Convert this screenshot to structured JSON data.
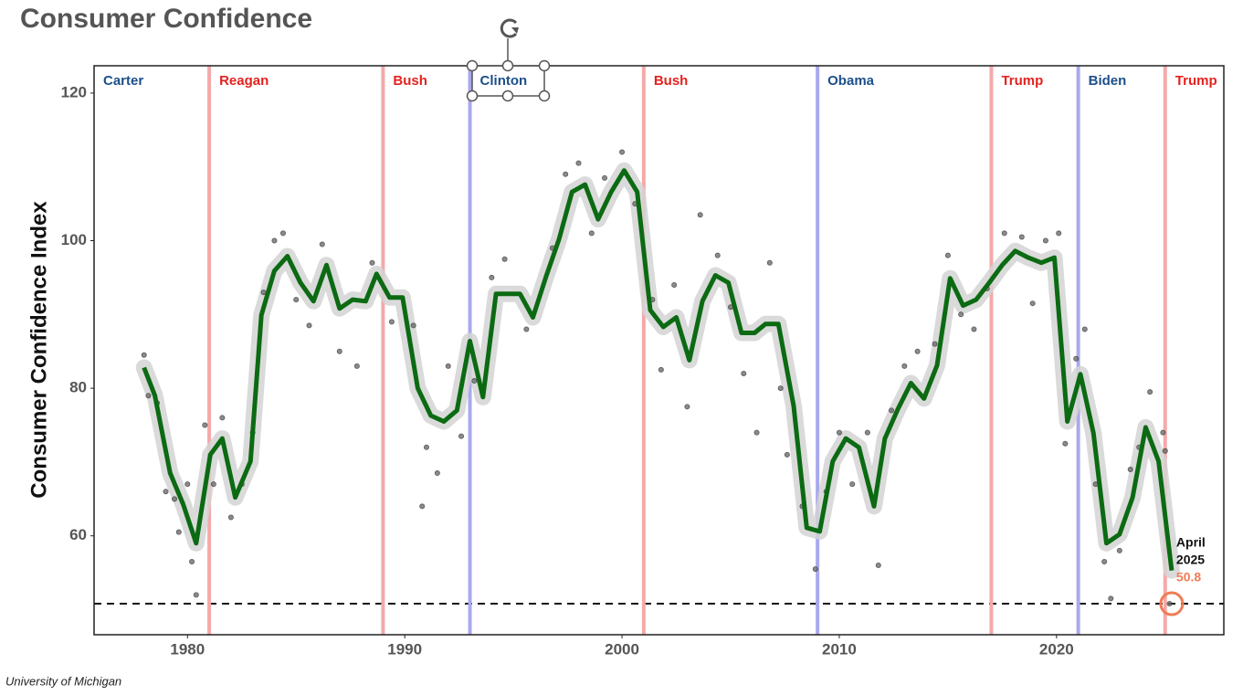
{
  "chart_data": {
    "type": "line",
    "title": "Consumer Confidence",
    "y_label": "Consumer Confidence Index",
    "source": "University of Michigan",
    "xlim": [
      1975.7,
      2027.7
    ],
    "ylim": [
      46.6,
      123.7
    ],
    "xticks": [
      1980,
      1990,
      2000,
      2010,
      2020
    ],
    "yticks": [
      60,
      80,
      100,
      120
    ],
    "grid": false,
    "presidents": [
      {
        "name": "Carter",
        "color": "#1c4f8a",
        "line_color": "#a9a9ee"
      },
      {
        "name": "Reagan",
        "start": 1981,
        "color": "#e3221f",
        "line_color": "#f4a9a9"
      },
      {
        "name": "Bush",
        "start": 1989,
        "color": "#e3221f",
        "line_color": "#f4a9a9"
      },
      {
        "name": "Clinton",
        "start": 1993,
        "color": "#1c4f8a",
        "line_color": "#a9a9ee"
      },
      {
        "name": "Bush",
        "start": 2001,
        "color": "#e3221f",
        "line_color": "#f4a9a9"
      },
      {
        "name": "Obama",
        "start": 2009,
        "color": "#1c4f8a",
        "line_color": "#a9a9ee"
      },
      {
        "name": "Trump",
        "start": 2017,
        "color": "#e3221f",
        "line_color": "#f4a9a9"
      },
      {
        "name": "Biden",
        "start": 2021,
        "color": "#1c4f8a",
        "line_color": "#a9a9ee"
      },
      {
        "name": "Trump",
        "start": 2025,
        "color": "#e3221f",
        "line_color": "#f4a9a9"
      }
    ],
    "trend": {
      "color": "#0b6a12",
      "band_color": "#d3d3d3",
      "x": [
        1978.0,
        1978.5,
        1979.2,
        1979.8,
        1980.4,
        1981.05,
        1981.6,
        1982.2,
        1982.9,
        1983.4,
        1984.0,
        1984.6,
        1985.2,
        1985.8,
        1986.4,
        1987.0,
        1987.6,
        1988.2,
        1988.7,
        1989.3,
        1989.9,
        1990.6,
        1991.2,
        1991.8,
        1992.4,
        1993.0,
        1993.6,
        1994.2,
        1994.7,
        1995.3,
        1995.9,
        1996.5,
        1997.1,
        1997.7,
        1998.3,
        1998.9,
        1999.5,
        2000.1,
        2000.7,
        2001.3,
        2001.9,
        2002.5,
        2003.1,
        2003.7,
        2004.3,
        2004.9,
        2005.5,
        2006.1,
        2006.6,
        2007.2,
        2007.9,
        2008.5,
        2009.1,
        2009.7,
        2010.3,
        2010.9,
        2011.6,
        2012.1,
        2012.7,
        2013.3,
        2013.9,
        2014.5,
        2015.1,
        2015.7,
        2016.3,
        2016.9,
        2017.5,
        2018.1,
        2018.7,
        2019.3,
        2019.9,
        2020.5,
        2021.1,
        2021.7,
        2022.3,
        2022.9,
        2023.5,
        2024.1,
        2024.7,
        2025.3
      ],
      "values": [
        82.8,
        79,
        68.5,
        64.3,
        59,
        71,
        73.2,
        65.2,
        70.1,
        89.9,
        95.9,
        97.9,
        94.3,
        91.8,
        96.7,
        90.8,
        92,
        91.8,
        95.5,
        92.3,
        92.3,
        80,
        76.3,
        75.5,
        77,
        86.4,
        78.8,
        92.8,
        92.8,
        92.8,
        89.6,
        95.1,
        100.2,
        106.6,
        107.6,
        102.9,
        106.6,
        109.5,
        106.6,
        90.6,
        88.3,
        89.6,
        83.8,
        91.8,
        95.3,
        94.3,
        87.5,
        87.5,
        88.7,
        88.7,
        77.6,
        61.1,
        60.6,
        70.1,
        73.2,
        72,
        64,
        73.2,
        77.2,
        80.7,
        78.6,
        83.1,
        94.9,
        91.2,
        92,
        94.3,
        96.7,
        98.6,
        97.7,
        97,
        97.7,
        75.5,
        81.9,
        73.9,
        59,
        60.2,
        65.2,
        74.7,
        70.1,
        55.3
      ]
    },
    "points": {
      "color": "#6e6e6e",
      "x": [
        1978.0,
        1978.2,
        1978.6,
        1979.0,
        1979.4,
        1979.6,
        1980.0,
        1980.2,
        1980.4,
        1980.8,
        1981.2,
        1981.6,
        1982.0,
        1982.5,
        1983.0,
        1983.5,
        1984.0,
        1984.4,
        1985.0,
        1985.6,
        1986.2,
        1987.0,
        1987.8,
        1988.5,
        1989.4,
        1990.4,
        1990.8,
        1991.0,
        1991.5,
        1992.0,
        1992.6,
        1993.2,
        1994.0,
        1994.6,
        1995.6,
        1996.8,
        1997.4,
        1998.0,
        1998.6,
        1999.2,
        2000.0,
        2000.6,
        2001.4,
        2001.8,
        2002.4,
        2003.0,
        2003.6,
        2004.4,
        2005.0,
        2005.6,
        2006.2,
        2006.8,
        2007.3,
        2007.6,
        2008.3,
        2008.9,
        2009.4,
        2010.0,
        2010.6,
        2011.3,
        2011.8,
        2012.4,
        2013.0,
        2013.6,
        2014.4,
        2015.0,
        2015.6,
        2016.2,
        2016.8,
        2017.6,
        2018.4,
        2018.9,
        2019.5,
        2020.1,
        2020.4,
        2020.9,
        2021.3,
        2021.8,
        2022.2,
        2022.5,
        2022.9,
        2023.4,
        2023.8,
        2024.3,
        2024.9,
        2025.0,
        2025.2
      ],
      "y": [
        84.5,
        79,
        78,
        66,
        65,
        60.5,
        67,
        56.5,
        52,
        75,
        67,
        76,
        62.5,
        67,
        74,
        93,
        100,
        101,
        92,
        88.5,
        99.5,
        85,
        83,
        97,
        89,
        88.5,
        64,
        72,
        68.5,
        83,
        73.5,
        81,
        95,
        97.5,
        88,
        99,
        109,
        110.5,
        101,
        108.5,
        112,
        105,
        92,
        82.5,
        94,
        77.5,
        103.5,
        98,
        91,
        82,
        74,
        97,
        80,
        71,
        64,
        55.5,
        66,
        74,
        67,
        74,
        56,
        77,
        83,
        85,
        86,
        98,
        90,
        88,
        93.5,
        101,
        100.5,
        91.5,
        100,
        101,
        72.5,
        84,
        88,
        67,
        56.5,
        51.5,
        58,
        69,
        72,
        79.5,
        74,
        71.5,
        50.8
      ]
    },
    "reference_value": 50.8,
    "reference_color": "#f07c56",
    "annotation_lines": [
      "April",
      "2025"
    ]
  }
}
